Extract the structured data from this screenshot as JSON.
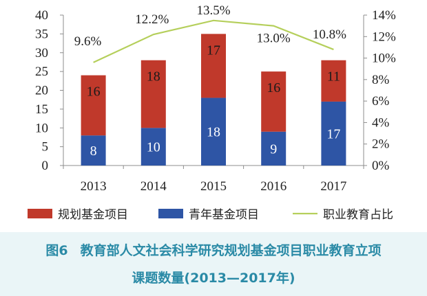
{
  "chart_data": {
    "type": "bar",
    "stacked": true,
    "categories": [
      "2013",
      "2014",
      "2015",
      "2016",
      "2017"
    ],
    "series": [
      {
        "name": "青年基金项目",
        "kind": "bar",
        "axis": "left",
        "color": "#2e55a5",
        "values": [
          8,
          10,
          18,
          9,
          17
        ]
      },
      {
        "name": "规划基金项目",
        "kind": "bar",
        "axis": "left",
        "color": "#c0392b",
        "values": [
          16,
          18,
          17,
          16,
          11
        ]
      },
      {
        "name": "职业教育占比",
        "kind": "line",
        "axis": "right",
        "color": "#b5cf5b",
        "values": [
          9.6,
          12.2,
          13.5,
          13.0,
          10.8
        ],
        "labels": [
          "9.6%",
          "12.2%",
          "13.5%",
          "13.0%",
          "10.8%"
        ]
      }
    ],
    "left_axis": {
      "ylim": [
        0,
        40
      ],
      "ticks": [
        "0",
        "5",
        "10",
        "15",
        "20",
        "25",
        "30",
        "35",
        "40"
      ]
    },
    "right_axis": {
      "ylim": [
        0,
        14
      ],
      "ticks": [
        "0%",
        "2%",
        "4%",
        "6%",
        "8%",
        "10%",
        "12%",
        "14%"
      ]
    },
    "legend": {
      "position": "bottom",
      "items": [
        "规划基金项目",
        "青年基金项目",
        "职业教育占比"
      ]
    },
    "grid": false
  },
  "caption": {
    "figure_no": "图6",
    "line1": "教育部人文社会科学研究规划基金项目职业教育立项",
    "line2": "课题数量(2013—2017年)"
  }
}
